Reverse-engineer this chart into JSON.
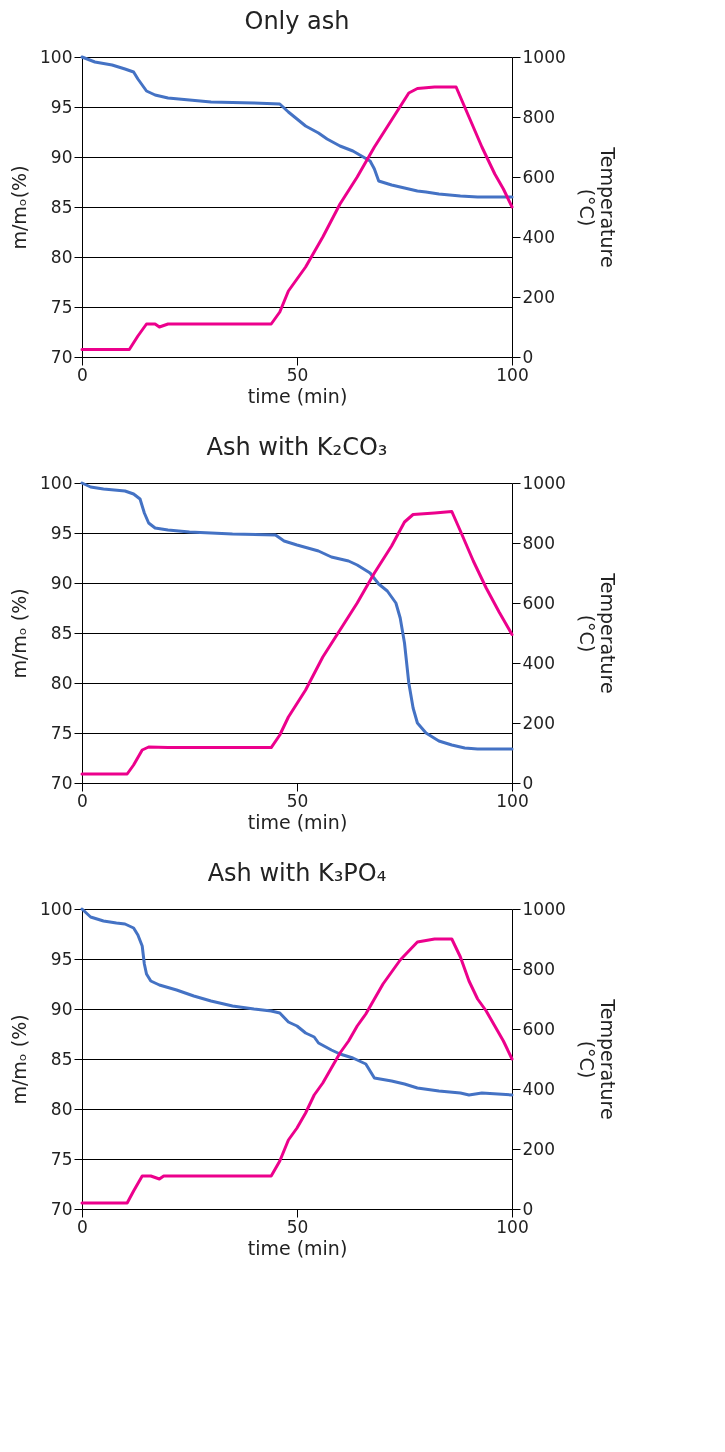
{
  "chart_data": [
    {
      "type": "line",
      "title": "Only ash",
      "xlabel": "time (min)",
      "ylabel": "m/mₒ(%)",
      "y2label": "Temperature (°C)",
      "xlim": [
        0,
        100
      ],
      "xticks": [
        0,
        50,
        100
      ],
      "ylim": [
        70,
        100
      ],
      "yticks": [
        70,
        75,
        80,
        85,
        90,
        95,
        100
      ],
      "y2lim": [
        0,
        1000
      ],
      "y2ticks": [
        0,
        200,
        400,
        600,
        800,
        1000
      ],
      "grid": "y",
      "legend": false,
      "marker": "none",
      "line_style": "solid",
      "series": [
        {
          "color": "#4472c4",
          "x": [
            0,
            3,
            7,
            10,
            12,
            13,
            15,
            17,
            20,
            25,
            30,
            40,
            46,
            48,
            50,
            52,
            55,
            57,
            60,
            63,
            65,
            67,
            68,
            69,
            72,
            75,
            78,
            80,
            83,
            88,
            92,
            100
          ],
          "values": [
            100,
            99.5,
            99.2,
            98.8,
            98.5,
            97.8,
            96.6,
            96.2,
            95.9,
            95.7,
            95.5,
            95.4,
            95.3,
            94.5,
            93.8,
            93.1,
            92.4,
            91.8,
            91.1,
            90.6,
            90.1,
            89.6,
            88.8,
            87.6,
            87.2,
            86.9,
            86.6,
            86.5,
            86.3,
            86.1,
            86.0,
            86.0
          ]
        },
        {
          "color": "#ec008c",
          "axis": "y2",
          "x": [
            0,
            11,
            13,
            15,
            17,
            18,
            20,
            44,
            46,
            48,
            52,
            56,
            60,
            64,
            68,
            72,
            76,
            78,
            82,
            87,
            90,
            93,
            96,
            98,
            100
          ],
          "values": [
            25,
            25,
            70,
            110,
            110,
            100,
            110,
            110,
            150,
            220,
            300,
            400,
            510,
            600,
            700,
            790,
            880,
            895,
            900,
            900,
            800,
            700,
            610,
            560,
            500
          ]
        }
      ]
    },
    {
      "type": "line",
      "title": "Ash with K₂CO₃",
      "xlabel": "time (min)",
      "ylabel": "m/mₒ (%)",
      "y2label": "Temperature (°C)",
      "xlim": [
        0,
        100
      ],
      "xticks": [
        0,
        50,
        100
      ],
      "ylim": [
        70,
        100
      ],
      "yticks": [
        70,
        75,
        80,
        85,
        90,
        95,
        100
      ],
      "y2lim": [
        0,
        1000
      ],
      "y2ticks": [
        0,
        200,
        400,
        600,
        800,
        1000
      ],
      "grid": "y",
      "legend": false,
      "marker": "none",
      "line_style": "solid",
      "series": [
        {
          "color": "#4472c4",
          "x": [
            0,
            2,
            5,
            10,
            12,
            13.5,
            14.5,
            15.5,
            17,
            20,
            25,
            35,
            45,
            47,
            50,
            55,
            58,
            62,
            64,
            67,
            69,
            71,
            73,
            74,
            75,
            76,
            77,
            78,
            80,
            83,
            86,
            89,
            92,
            100
          ],
          "values": [
            100,
            99.6,
            99.4,
            99.2,
            98.9,
            98.4,
            97,
            96,
            95.5,
            95.3,
            95.1,
            94.9,
            94.8,
            94.2,
            93.8,
            93.2,
            92.6,
            92.2,
            91.8,
            91,
            89.9,
            89.2,
            88,
            86.5,
            84,
            80,
            77.5,
            76,
            75,
            74.2,
            73.8,
            73.5,
            73.4,
            73.4
          ]
        },
        {
          "color": "#ec008c",
          "axis": "y2",
          "x": [
            0,
            10.5,
            12,
            14,
            15.5,
            20,
            44,
            46,
            48,
            52,
            56,
            60,
            64,
            68,
            72,
            75,
            77,
            82,
            86,
            88,
            91,
            94,
            97,
            100
          ],
          "values": [
            30,
            30,
            60,
            110,
            120,
            118,
            118,
            160,
            220,
            310,
            420,
            510,
            600,
            700,
            790,
            870,
            895,
            900,
            905,
            840,
            740,
            650,
            570,
            495
          ]
        }
      ]
    },
    {
      "type": "line",
      "title": "Ash with K₃PO₄",
      "xlabel": "time (min)",
      "ylabel": "m/mₒ (%)",
      "y2label": "Temperature (°C)",
      "xlim": [
        0,
        100
      ],
      "xticks": [
        0,
        50,
        100
      ],
      "ylim": [
        70,
        100
      ],
      "yticks": [
        70,
        75,
        80,
        85,
        90,
        95,
        100
      ],
      "y2lim": [
        0,
        1000
      ],
      "y2ticks": [
        0,
        200,
        400,
        600,
        800,
        1000
      ],
      "grid": "y",
      "legend": false,
      "marker": "none",
      "line_style": "solid",
      "series": [
        {
          "color": "#4472c4",
          "x": [
            0,
            2,
            5,
            8,
            10,
            12,
            13,
            14,
            14.5,
            15,
            16,
            18,
            22,
            26,
            30,
            35,
            40,
            44,
            46,
            48,
            50,
            52,
            54,
            55,
            58,
            60,
            63,
            66,
            68,
            72,
            75,
            78,
            83,
            88,
            90,
            93,
            100
          ],
          "values": [
            100,
            99.2,
            98.8,
            98.6,
            98.5,
            98.1,
            97.4,
            96.3,
            94.5,
            93.5,
            92.8,
            92.4,
            91.9,
            91.3,
            90.8,
            90.3,
            90,
            89.8,
            89.6,
            88.7,
            88.3,
            87.6,
            87.2,
            86.6,
            85.9,
            85.5,
            85.1,
            84.5,
            83.1,
            82.8,
            82.5,
            82.1,
            81.8,
            81.6,
            81.4,
            81.6,
            81.4
          ]
        },
        {
          "color": "#ec008c",
          "axis": "y2",
          "x": [
            0,
            10.5,
            12,
            14,
            16,
            18,
            19,
            44,
            46,
            48,
            50,
            52,
            54,
            56,
            58,
            60,
            62,
            64,
            66,
            68,
            70,
            72,
            74,
            76,
            78,
            80,
            82,
            86,
            88,
            90,
            92,
            94,
            96,
            98,
            100
          ],
          "values": [
            20,
            20,
            60,
            110,
            110,
            100,
            110,
            110,
            160,
            230,
            270,
            320,
            380,
            420,
            470,
            520,
            560,
            610,
            650,
            700,
            750,
            790,
            830,
            860,
            890,
            895,
            900,
            900,
            840,
            760,
            700,
            660,
            610,
            560,
            500
          ]
        }
      ]
    }
  ]
}
